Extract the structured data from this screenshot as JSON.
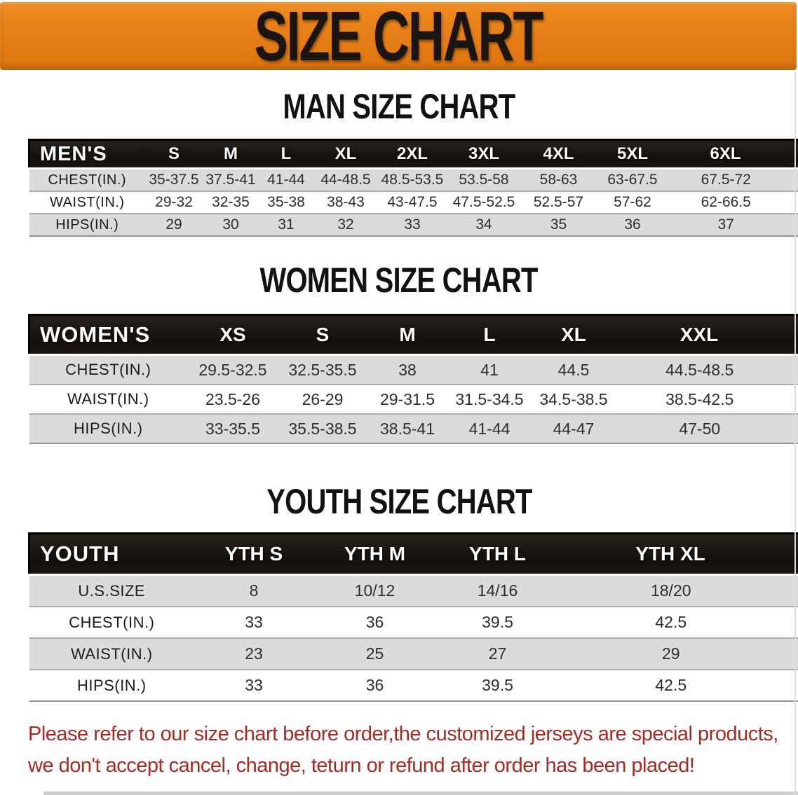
{
  "banner": {
    "title": "SIZE CHART"
  },
  "colors": {
    "accent-orange": "#e67d16",
    "header-black": "#161210",
    "row-gray": "#dbdbdb",
    "disclaimer-red": "#a62b22",
    "title-black": "#1a1511"
  },
  "sections": [
    {
      "heading": "MAN SIZE CHART",
      "table": {
        "id": "men",
        "header_label": "MEN'S",
        "columns": [
          "S",
          "M",
          "L",
          "XL",
          "2XL",
          "3XL",
          "4XL",
          "5XL",
          "6XL"
        ],
        "rows": [
          {
            "label": "CHEST(IN.)",
            "values": [
              "35-37.5",
              "37.5-41",
              "41-44",
              "44-48.5",
              "48.5-53.5",
              "53.5-58",
              "58-63",
              "63-67.5",
              "67.5-72"
            ]
          },
          {
            "label": "WAIST(IN.)",
            "values": [
              "29-32",
              "32-35",
              "35-38",
              "38-43",
              "43-47.5",
              "47.5-52.5",
              "52.5-57",
              "57-62",
              "62-66.5"
            ]
          },
          {
            "label": "HIPS(IN.)",
            "values": [
              "29",
              "30",
              "31",
              "32",
              "33",
              "34",
              "35",
              "36",
              "37"
            ]
          }
        ]
      }
    },
    {
      "heading": "WOMEN SIZE CHART",
      "table": {
        "id": "women",
        "header_label": "WOMEN'S",
        "columns": [
          "XS",
          "S",
          "M",
          "L",
          "XL",
          "XXL"
        ],
        "rows": [
          {
            "label": "CHEST(IN.)",
            "values": [
              "29.5-32.5",
              "32.5-35.5",
              "38",
              "41",
              "44.5",
              "44.5-48.5"
            ]
          },
          {
            "label": "WAIST(IN.)",
            "values": [
              "23.5-26",
              "26-29",
              "29-31.5",
              "31.5-34.5",
              "34.5-38.5",
              "38.5-42.5"
            ]
          },
          {
            "label": "HIPS(IN.)",
            "values": [
              "33-35.5",
              "35.5-38.5",
              "38.5-41",
              "41-44",
              "44-47",
              "47-50"
            ]
          }
        ]
      }
    },
    {
      "heading": "YOUTH SIZE CHART",
      "table": {
        "id": "youth",
        "header_label": "YOUTH",
        "columns": [
          "YTH S",
          "YTH M",
          "YTH L",
          "YTH XL"
        ],
        "rows": [
          {
            "label": "U.S.SIZE",
            "values": [
              "8",
              "10/12",
              "14/16",
              "18/20"
            ]
          },
          {
            "label": "CHEST(IN.)",
            "values": [
              "33",
              "36",
              "39.5",
              "42.5"
            ]
          },
          {
            "label": "WAIST(IN.)",
            "values": [
              "23",
              "25",
              "27",
              "29"
            ]
          },
          {
            "label": "HIPS(IN.)",
            "values": [
              "33",
              "36",
              "39.5",
              "42.5"
            ]
          }
        ]
      }
    }
  ],
  "disclaimer": {
    "line1": "Please refer to our size chart before order,the customized jerseys are special products,",
    "line2": "we don't accept cancel, change, teturn or refund after order has been placed!"
  }
}
